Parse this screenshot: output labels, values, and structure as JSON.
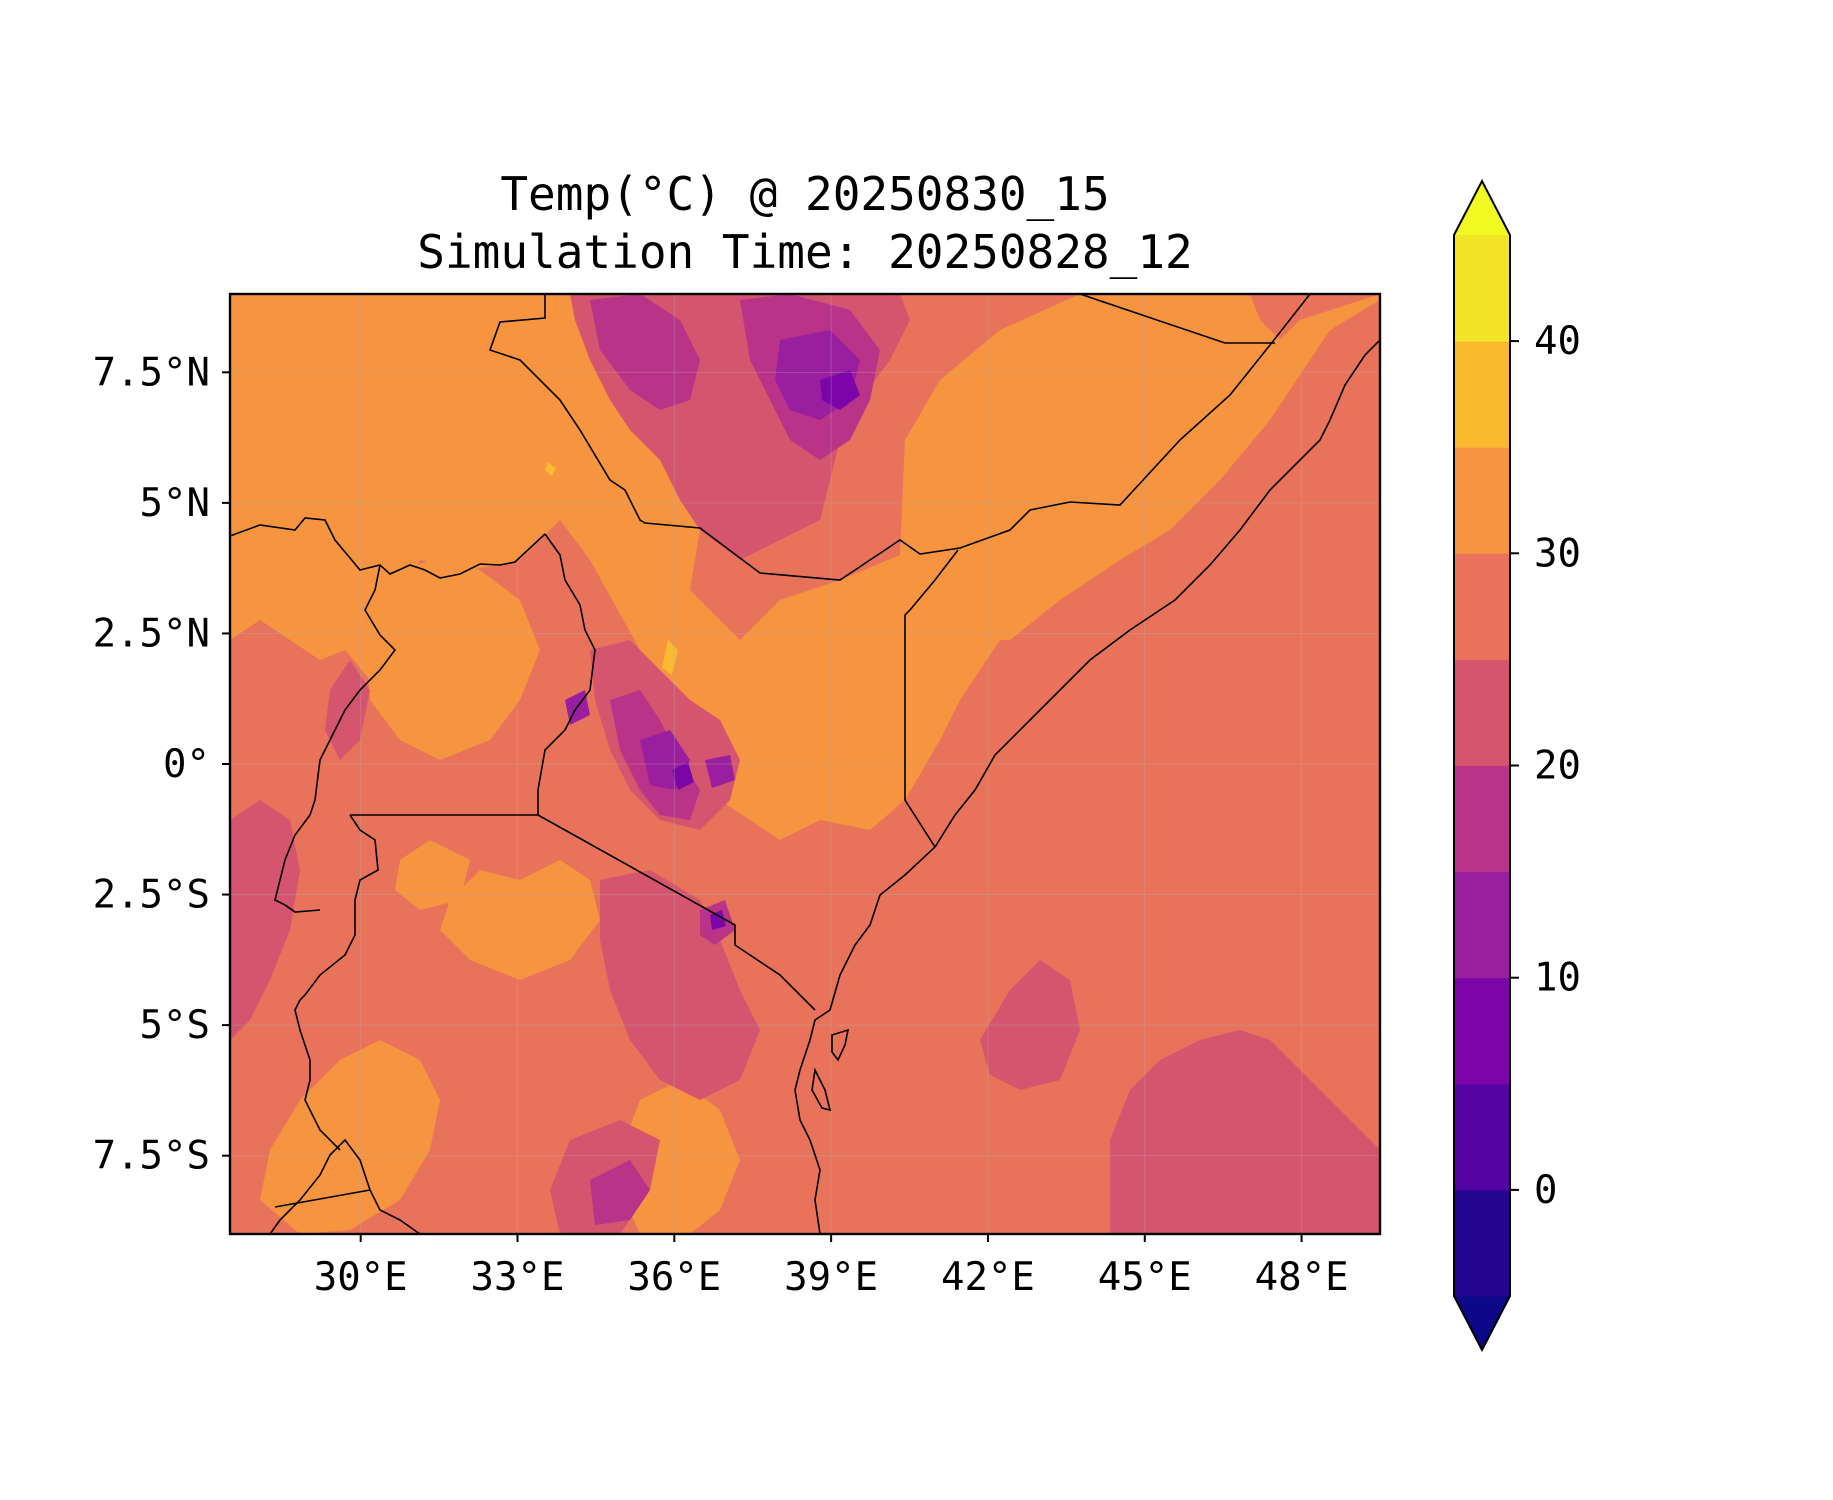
{
  "title": {
    "line1": "Temp(°C) @ 20250830_15",
    "line2": "Simulation Time: 20250828_12"
  },
  "map": {
    "variable": "Temp(°C)",
    "lon_range": [
      27.5,
      49.5
    ],
    "lat_range": [
      -9,
      9
    ],
    "x_ticks": [
      {
        "value": 30,
        "label": "30°E"
      },
      {
        "value": 33,
        "label": "33°E"
      },
      {
        "value": 36,
        "label": "36°E"
      },
      {
        "value": 39,
        "label": "39°E"
      },
      {
        "value": 42,
        "label": "42°E"
      },
      {
        "value": 45,
        "label": "45°E"
      },
      {
        "value": 48,
        "label": "48°E"
      }
    ],
    "y_ticks": [
      {
        "value": 7.5,
        "label": "7.5°N"
      },
      {
        "value": 5,
        "label": "5°N"
      },
      {
        "value": 2.5,
        "label": "2.5°N"
      },
      {
        "value": 0,
        "label": "0°"
      },
      {
        "value": -2.5,
        "label": "2.5°S"
      },
      {
        "value": -5,
        "label": "5°S"
      },
      {
        "value": -7.5,
        "label": "7.5°S"
      }
    ],
    "grid": true,
    "colors": {
      "warm_base": "#e8735a",
      "hot": "#f69440",
      "cool": "#d5546e",
      "colder": "#b93389",
      "cold": "#9a1ea0",
      "coldest": "#7b05a7",
      "very_hot": "#fbb92f"
    }
  },
  "colorbar": {
    "range": [
      -5,
      45
    ],
    "extend": "both",
    "bands": [
      {
        "from": -5,
        "to": 0,
        "color": "#220690"
      },
      {
        "from": 0,
        "to": 5,
        "color": "#5403a2"
      },
      {
        "from": 5,
        "to": 10,
        "color": "#7b05a7"
      },
      {
        "from": 10,
        "to": 15,
        "color": "#9a1ea0"
      },
      {
        "from": 15,
        "to": 20,
        "color": "#b93389"
      },
      {
        "from": 20,
        "to": 25,
        "color": "#d5546e"
      },
      {
        "from": 25,
        "to": 30,
        "color": "#e8735a"
      },
      {
        "from": 30,
        "to": 35,
        "color": "#f69440"
      },
      {
        "from": 35,
        "to": 40,
        "color": "#fbb92f"
      },
      {
        "from": 40,
        "to": 45,
        "color": "#f2e426"
      }
    ],
    "extend_low_color": "#0d0887",
    "extend_high_color": "#f0f921",
    "ticks": [
      {
        "value": 0,
        "label": "0"
      },
      {
        "value": 10,
        "label": "10"
      },
      {
        "value": 20,
        "label": "20"
      },
      {
        "value": 30,
        "label": "30"
      },
      {
        "value": 40,
        "label": "40"
      }
    ]
  }
}
